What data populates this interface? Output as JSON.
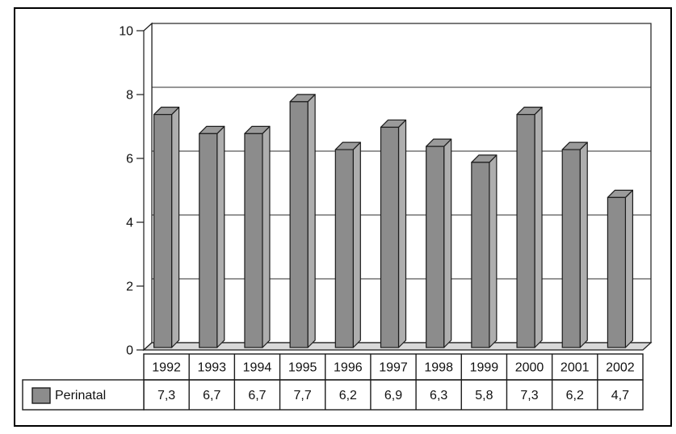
{
  "figure": {
    "background": "#ffffff",
    "border_color": "#000000"
  },
  "chart_data": {
    "type": "bar",
    "style": "3d-column",
    "title": "",
    "xlabel": "",
    "ylabel": "",
    "categories": [
      "1992",
      "1993",
      "1994",
      "1995",
      "1996",
      "1997",
      "1998",
      "1999",
      "2000",
      "2001",
      "2002"
    ],
    "series": [
      {
        "name": "Perinatal",
        "values": [
          7.3,
          6.7,
          6.7,
          7.7,
          6.2,
          6.9,
          6.3,
          5.8,
          7.3,
          6.2,
          4.7
        ],
        "display_values": [
          "7,3",
          "6,7",
          "6,7",
          "7,7",
          "6,2",
          "6,9",
          "6,3",
          "5,8",
          "7,3",
          "6,2",
          "4,7"
        ]
      }
    ],
    "ylim": [
      0,
      10
    ],
    "yticks": [
      0,
      2,
      4,
      6,
      8,
      10
    ],
    "ytick_labels": [
      "0",
      "2",
      "4",
      "6",
      "8",
      "10"
    ],
    "grid": true,
    "legend_position": "bottom-table-row-header",
    "colors": {
      "bar_front": "#8c8c8c",
      "bar_top": "#9a9a9a",
      "bar_side": "#aeaeae",
      "floor": "#d9d9d9",
      "wall": "#ffffff",
      "line": "#1c1c1c",
      "grid_line": "#2e2e2e"
    }
  }
}
